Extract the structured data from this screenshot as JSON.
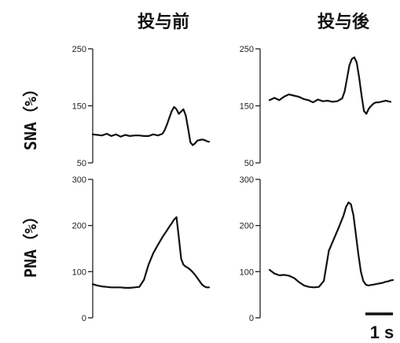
{
  "chart_data": [
    {
      "type": "line",
      "panel": "SNA-before",
      "column_title": "投与前",
      "ylabel": "SNA（%）",
      "ylim": [
        50,
        250
      ],
      "yticks": [
        50,
        150,
        250
      ],
      "x": [
        0,
        0.1,
        0.2,
        0.3,
        0.4,
        0.5,
        0.6,
        0.7,
        0.8,
        0.9,
        1.0,
        1.1,
        1.2,
        1.3,
        1.4,
        1.5,
        1.55,
        1.6,
        1.65,
        1.7,
        1.75,
        1.8,
        1.85,
        1.9,
        1.95,
        2.0,
        2.05,
        2.1,
        2.15,
        2.2,
        2.25,
        2.3,
        2.35,
        2.4,
        2.45,
        2.5
      ],
      "series": [
        {
          "values": [
            100,
            99,
            98,
            101,
            97,
            100,
            96,
            99,
            97,
            98,
            98,
            97,
            97,
            100,
            98,
            101,
            108,
            118,
            130,
            141,
            148,
            144,
            136,
            140,
            144,
            133,
            110,
            86,
            81,
            84,
            89,
            90,
            91,
            90,
            88,
            87
          ]
        }
      ]
    },
    {
      "type": "line",
      "panel": "SNA-after",
      "column_title": "投与後",
      "ylabel": "",
      "ylim": [
        50,
        250
      ],
      "yticks": [
        50,
        150,
        250
      ],
      "x": [
        0,
        0.1,
        0.2,
        0.3,
        0.4,
        0.5,
        0.6,
        0.7,
        0.8,
        0.9,
        1.0,
        1.1,
        1.2,
        1.3,
        1.4,
        1.5,
        1.55,
        1.6,
        1.65,
        1.7,
        1.75,
        1.8,
        1.85,
        1.9,
        1.95,
        2.0,
        2.05,
        2.1,
        2.15,
        2.2,
        2.25,
        2.3,
        2.35,
        2.4,
        2.45,
        2.5
      ],
      "series": [
        {
          "values": [
            160,
            164,
            160,
            166,
            170,
            168,
            166,
            162,
            160,
            156,
            161,
            158,
            159,
            157,
            158,
            163,
            175,
            198,
            221,
            232,
            235,
            226,
            200,
            169,
            141,
            136,
            145,
            150,
            154,
            156,
            156,
            157,
            158,
            159,
            158,
            157
          ]
        }
      ]
    },
    {
      "type": "line",
      "panel": "PNA-before",
      "column_title": "",
      "ylabel": "PNA（%）",
      "ylim": [
        0,
        300
      ],
      "yticks": [
        0,
        100,
        200,
        300
      ],
      "x": [
        0,
        0.1,
        0.2,
        0.3,
        0.4,
        0.5,
        0.6,
        0.7,
        0.8,
        0.9,
        1.0,
        1.1,
        1.2,
        1.3,
        1.4,
        1.5,
        1.6,
        1.65,
        1.7,
        1.75,
        1.8,
        1.85,
        1.9,
        1.95,
        2.0,
        2.05,
        2.1,
        2.15,
        2.2,
        2.25,
        2.3,
        2.35,
        2.4,
        2.45,
        2.5
      ],
      "series": [
        {
          "values": [
            73,
            70,
            68,
            67,
            66,
            66,
            66,
            65,
            65,
            66,
            67,
            82,
            115,
            140,
            158,
            175,
            190,
            198,
            205,
            213,
            218,
            175,
            128,
            115,
            111,
            108,
            104,
            99,
            93,
            86,
            79,
            72,
            68,
            66,
            66
          ]
        }
      ]
    },
    {
      "type": "line",
      "panel": "PNA-after",
      "column_title": "",
      "ylabel": "",
      "ylim": [
        0,
        300
      ],
      "yticks": [
        0,
        100,
        200,
        300
      ],
      "x": [
        0,
        0.1,
        0.2,
        0.3,
        0.4,
        0.5,
        0.6,
        0.7,
        0.8,
        0.9,
        1.0,
        1.1,
        1.2,
        1.3,
        1.4,
        1.5,
        1.55,
        1.6,
        1.65,
        1.7,
        1.75,
        1.8,
        1.85,
        1.9,
        1.95,
        2.0,
        2.05,
        2.1,
        2.15,
        2.2,
        2.25,
        2.3,
        2.35,
        2.4,
        2.45,
        2.5
      ],
      "series": [
        {
          "values": [
            104,
            96,
            92,
            93,
            91,
            86,
            77,
            70,
            67,
            66,
            67,
            80,
            145,
            170,
            195,
            222,
            240,
            250,
            246,
            222,
            180,
            138,
            100,
            80,
            72,
            70,
            71,
            72,
            73,
            74,
            75,
            76,
            78,
            79,
            81,
            82
          ]
        }
      ]
    }
  ],
  "scale_bar": {
    "label": "1 s"
  }
}
